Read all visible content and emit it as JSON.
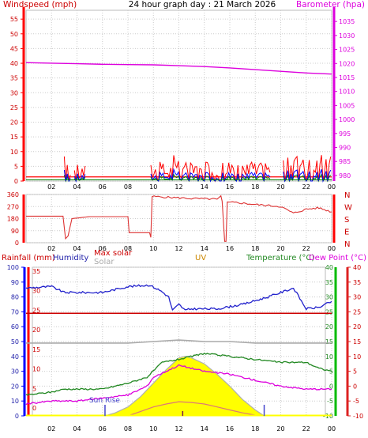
{
  "header": {
    "title": "24 hour graph day : 21 March 2026",
    "windspeed_label": "Windspeed (mph)",
    "barometer_label": "Barometer (hpa)"
  },
  "colors": {
    "wind": "#ff0000",
    "gust_blue": "#0000ff",
    "gust_green": "#008000",
    "barometer": "#dd00dd",
    "direction": "#dd3333",
    "humidity": "#2222cc",
    "rain": "#cc0000",
    "solar": "#aaaaaa",
    "temperature": "#228822",
    "dewpoint": "#dd00dd",
    "fill": "#ffff00",
    "uv": "#cc8800"
  },
  "chart_data": [
    {
      "type": "line",
      "name": "wind-barometer",
      "title": "24 hour graph day : 21 March 2026",
      "ylabel_left": "Windspeed (mph)",
      "ylabel_right": "Barometer (hpa)",
      "x_ticks": [
        "02",
        "04",
        "06",
        "08",
        "10",
        "12",
        "14",
        "16",
        "18",
        "20",
        "22",
        "00"
      ],
      "y_left_ticks": [
        "55",
        "50",
        "45",
        "40",
        "35",
        "30",
        "25",
        "20",
        "15",
        "10",
        "5",
        "0"
      ],
      "y_right_ticks": [
        "1035",
        "1030",
        "1025",
        "1020",
        "1015",
        "1010",
        "1005",
        "1000",
        "995",
        "990",
        "985",
        "980"
      ],
      "ylim_left": [
        0,
        58
      ],
      "ylim_right": [
        978,
        1039
      ],
      "barometer_hpa": [
        [
          0,
          1020.3
        ],
        [
          2,
          1020.1
        ],
        [
          4,
          1019.9
        ],
        [
          6,
          1019.7
        ],
        [
          8,
          1019.6
        ],
        [
          10,
          1019.5
        ],
        [
          12,
          1019.2
        ],
        [
          14,
          1018.9
        ],
        [
          16,
          1018.4
        ],
        [
          18,
          1017.8
        ],
        [
          20,
          1017.2
        ],
        [
          22,
          1016.6
        ],
        [
          24,
          1016.2
        ]
      ],
      "wind_gust_bursts": [
        [
          3,
          9,
          3.5
        ],
        [
          3.8,
          9,
          4.7
        ],
        [
          9.8,
          10,
          19.2
        ],
        [
          20.2,
          13,
          24
        ]
      ],
      "grid": true
    },
    {
      "type": "line",
      "name": "wind-direction",
      "y_ticks": [
        "360",
        "270",
        "180",
        "90",
        "0"
      ],
      "compass_labels": [
        "N",
        "W",
        "S",
        "E",
        "N"
      ],
      "ylim": [
        0,
        360
      ],
      "series": [
        {
          "values": [
            [
              0,
              198
            ],
            [
              2.9,
              198
            ],
            [
              3.1,
              30
            ],
            [
              3.3,
              50
            ],
            [
              3.6,
              180
            ],
            [
              5,
              195
            ],
            [
              8,
              195
            ],
            [
              8.1,
              75
            ],
            [
              9.7,
              75
            ],
            [
              9.8,
              40
            ],
            [
              9.9,
              345
            ],
            [
              11,
              340
            ],
            [
              13,
              330
            ],
            [
              15,
              325
            ],
            [
              15.3,
              350
            ],
            [
              15.4,
              310
            ],
            [
              15.6,
              10
            ],
            [
              15.7,
              10
            ],
            [
              15.8,
              300
            ],
            [
              16.5,
              300
            ],
            [
              18,
              285
            ],
            [
              20,
              270
            ],
            [
              21,
              220
            ],
            [
              22,
              250
            ],
            [
              23,
              260
            ],
            [
              24,
              230
            ]
          ]
        }
      ],
      "grid": true
    },
    {
      "type": "line",
      "name": "weather-bottom",
      "legend": [
        "Rainfall (mm)",
        "Humidity",
        "Max solar",
        "Solar",
        "UV",
        "Temperature (°C)",
        "Dew Point (°C)"
      ],
      "y_left1_ticks": [
        "100",
        "90",
        "80",
        "70",
        "60",
        "50",
        "40",
        "30",
        "20",
        "10",
        "0"
      ],
      "y_left2_ticks": [
        "35",
        "30",
        "25",
        "20",
        "15",
        "10",
        "5",
        "0"
      ],
      "y_right1_ticks": [
        "40",
        "35",
        "30",
        "25",
        "20",
        "15",
        "10",
        "5",
        "0",
        "-5",
        "-10"
      ],
      "y_right2_ticks": [
        "40",
        "35",
        "30",
        "25",
        "20",
        "15",
        "10",
        "5",
        "0",
        "-5",
        "-10"
      ],
      "ylim_humidity": [
        0,
        100
      ],
      "ylim_temperature": [
        -10,
        40
      ],
      "ylim_solar": [
        0,
        100
      ],
      "annotation": "Sun Rise",
      "humidity_pct": [
        [
          0,
          86
        ],
        [
          2,
          87
        ],
        [
          3,
          83
        ],
        [
          6,
          83
        ],
        [
          8,
          87
        ],
        [
          9.7,
          88
        ],
        [
          10.6,
          84
        ],
        [
          11.2,
          80
        ],
        [
          11.5,
          71
        ],
        [
          12,
          75
        ],
        [
          12.5,
          71
        ],
        [
          13,
          72
        ],
        [
          15,
          72
        ],
        [
          17,
          75
        ],
        [
          19,
          80
        ],
        [
          20,
          83
        ],
        [
          21,
          86
        ],
        [
          22,
          72
        ],
        [
          23,
          73
        ],
        [
          24,
          77
        ]
      ],
      "temperature_c": [
        [
          0,
          -3
        ],
        [
          2,
          -2
        ],
        [
          3,
          -1
        ],
        [
          6,
          -1
        ],
        [
          8,
          1
        ],
        [
          9.5,
          3
        ],
        [
          10.7,
          8
        ],
        [
          12,
          9
        ],
        [
          14,
          11
        ],
        [
          16,
          10
        ],
        [
          18,
          9
        ],
        [
          20,
          8
        ],
        [
          22,
          8
        ],
        [
          23,
          6
        ],
        [
          24,
          5
        ]
      ],
      "dewpoint_c": [
        [
          0,
          -6
        ],
        [
          2,
          -5
        ],
        [
          4,
          -5
        ],
        [
          6,
          -4
        ],
        [
          8,
          -3
        ],
        [
          9.5,
          0
        ],
        [
          10,
          3
        ],
        [
          11,
          5
        ],
        [
          12,
          7
        ],
        [
          14,
          5
        ],
        [
          16,
          4
        ],
        [
          18,
          2
        ],
        [
          20,
          0
        ],
        [
          22,
          -1
        ],
        [
          24,
          -1
        ]
      ],
      "solar_relative": [
        [
          0,
          49
        ],
        [
          6,
          49
        ],
        [
          8,
          49
        ],
        [
          10,
          50
        ],
        [
          12,
          51
        ],
        [
          14,
          50
        ],
        [
          16,
          50
        ],
        [
          18,
          49
        ],
        [
          20,
          49
        ],
        [
          22,
          49
        ],
        [
          24,
          49
        ]
      ],
      "max_solar_relative": [
        [
          6.2,
          0
        ],
        [
          7,
          2
        ],
        [
          8,
          6
        ],
        [
          9,
          13
        ],
        [
          10,
          22
        ],
        [
          11,
          31
        ],
        [
          12,
          39
        ],
        [
          12.5,
          40
        ],
        [
          13,
          39
        ],
        [
          14,
          35
        ],
        [
          15,
          28
        ],
        [
          16,
          20
        ],
        [
          17,
          11
        ],
        [
          18,
          4
        ],
        [
          18.7,
          0
        ]
      ],
      "uv_relative": [
        [
          8,
          0
        ],
        [
          9,
          3
        ],
        [
          10,
          6
        ],
        [
          11,
          8
        ],
        [
          12,
          9.5
        ],
        [
          13,
          9
        ],
        [
          14,
          8
        ],
        [
          15,
          6
        ],
        [
          16,
          4
        ],
        [
          17,
          2
        ],
        [
          18,
          0.5
        ]
      ],
      "rain_mm": [
        [
          0,
          0
        ],
        [
          24,
          0
        ]
      ],
      "sunrise_hour": 6.2,
      "sunset_hour": 18.7,
      "grid": true
    }
  ]
}
